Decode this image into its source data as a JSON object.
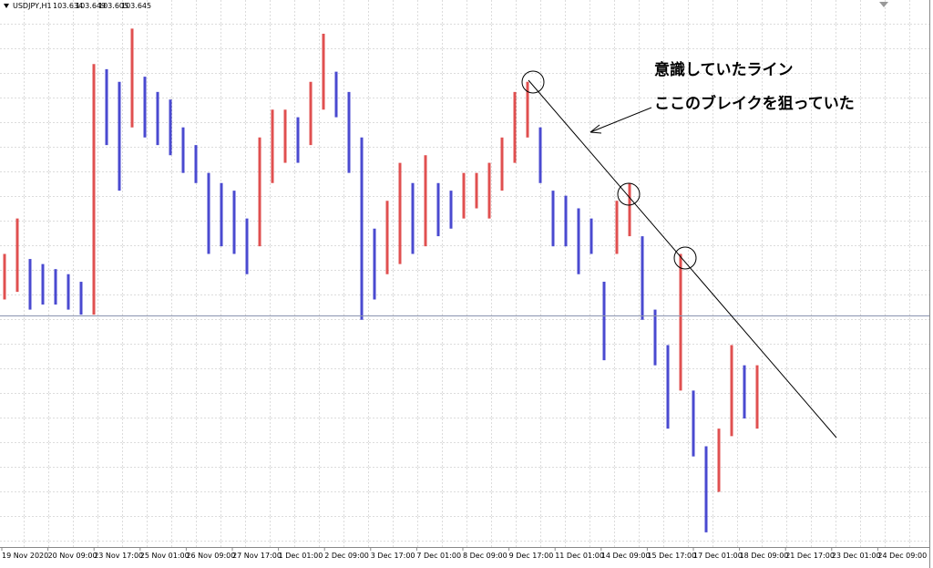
{
  "chart_data": {
    "type": "bar-range",
    "symbol": "USDJPY,H1",
    "quote": [
      103.634,
      103.649,
      103.605,
      103.645
    ],
    "annotations": [
      "意識していたライン",
      "ここのブレイクを狙っていた"
    ],
    "x_labels": [
      "19 Nov 2020",
      "20 Nov 09:00",
      "23 Nov 17:00",
      "25 Nov 01:00",
      "26 Nov 09:00",
      "27 Nov 17:00",
      "1 Dec 01:00",
      "2 Dec 09:00",
      "3 Dec 17:00",
      "7 Dec 01:00",
      "8 Dec 09:00",
      "9 Dec 17:00",
      "11 Dec 01:00",
      "14 Dec 09:00",
      "15 Dec 17:00",
      "17 Dec 01:00",
      "18 Dec 09:00",
      "21 Dec 17:00",
      "23 Dec 01:00",
      "24 Dec 09:00"
    ],
    "up_color": "#e05050",
    "down_color": "#4a4ad0",
    "line_color": "#8a94b0",
    "ylim": [
      102.75,
      104.85
    ],
    "high": [
      103.89,
      104.03,
      103.87,
      103.85,
      103.83,
      103.81,
      103.78,
      104.64,
      104.62,
      104.57,
      104.78,
      104.59,
      104.53,
      104.5,
      104.39,
      104.32,
      104.21,
      104.17,
      104.14,
      104.03,
      104.35,
      104.46,
      104.46,
      104.43,
      104.57,
      104.76,
      104.61,
      104.53,
      104.35,
      103.99,
      104.1,
      104.25,
      104.17,
      104.28,
      104.17,
      104.14,
      104.21,
      104.21,
      104.25,
      104.35,
      104.53,
      104.57,
      104.39,
      104.14,
      104.12,
      104.07,
      104.03,
      103.78,
      104.1,
      104.17,
      103.96,
      103.67,
      103.53,
      103.89,
      103.35,
      103.13,
      103.2,
      103.53,
      103.45,
      103.45
    ],
    "low": [
      103.71,
      103.74,
      103.67,
      103.69,
      103.69,
      103.67,
      103.65,
      103.65,
      104.32,
      104.14,
      104.39,
      104.35,
      104.32,
      104.28,
      104.21,
      104.17,
      103.89,
      103.92,
      103.89,
      103.81,
      103.92,
      104.17,
      104.25,
      104.25,
      104.32,
      104.46,
      104.43,
      104.21,
      103.63,
      103.71,
      103.81,
      103.85,
      103.89,
      103.92,
      103.96,
      103.99,
      104.03,
      104.07,
      104.03,
      104.14,
      104.25,
      104.35,
      104.17,
      103.92,
      103.92,
      103.81,
      103.89,
      103.47,
      103.89,
      103.96,
      103.63,
      103.45,
      103.2,
      103.35,
      103.09,
      102.79,
      102.95,
      103.17,
      103.24,
      103.2
    ]
  }
}
